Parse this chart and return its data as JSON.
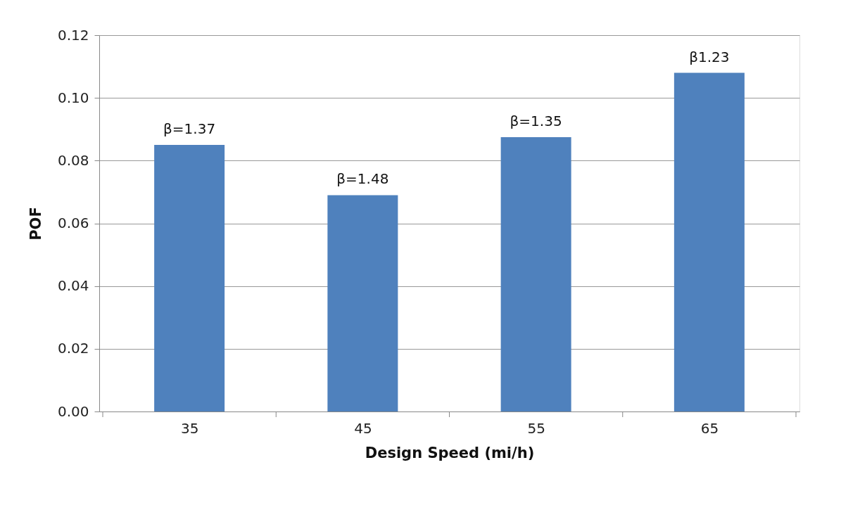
{
  "chart_data": {
    "type": "bar",
    "xlabel": "Design Speed (mi/h)",
    "ylabel": "POF",
    "categories": [
      "35",
      "45",
      "55",
      "65"
    ],
    "series": [
      {
        "color": "#4f81bd",
        "values": [
          0.085,
          0.069,
          0.0875,
          0.108
        ]
      }
    ],
    "ylim": [
      0,
      0.12
    ],
    "yticks": [
      {
        "value": 0,
        "label": "0.00"
      },
      {
        "value": 0.02,
        "label": "0.02"
      },
      {
        "value": 0.04,
        "label": "0.04"
      },
      {
        "value": 0.06,
        "label": "0.06"
      },
      {
        "value": 0.08,
        "label": "0.08"
      },
      {
        "value": 0.1,
        "label": "0.10"
      },
      {
        "value": 0.12,
        "label": "0.12"
      }
    ],
    "grid": "y",
    "legend": false,
    "annotations": [
      {
        "text": "β=1.37",
        "x": "35",
        "y": 0.085
      },
      {
        "text": "β=1.48",
        "x": "45",
        "y": 0.069
      },
      {
        "text": "β=1.35",
        "x": "55",
        "y": 0.0875
      },
      {
        "text": "β1.23",
        "x": "65",
        "y": 0.108
      }
    ]
  }
}
